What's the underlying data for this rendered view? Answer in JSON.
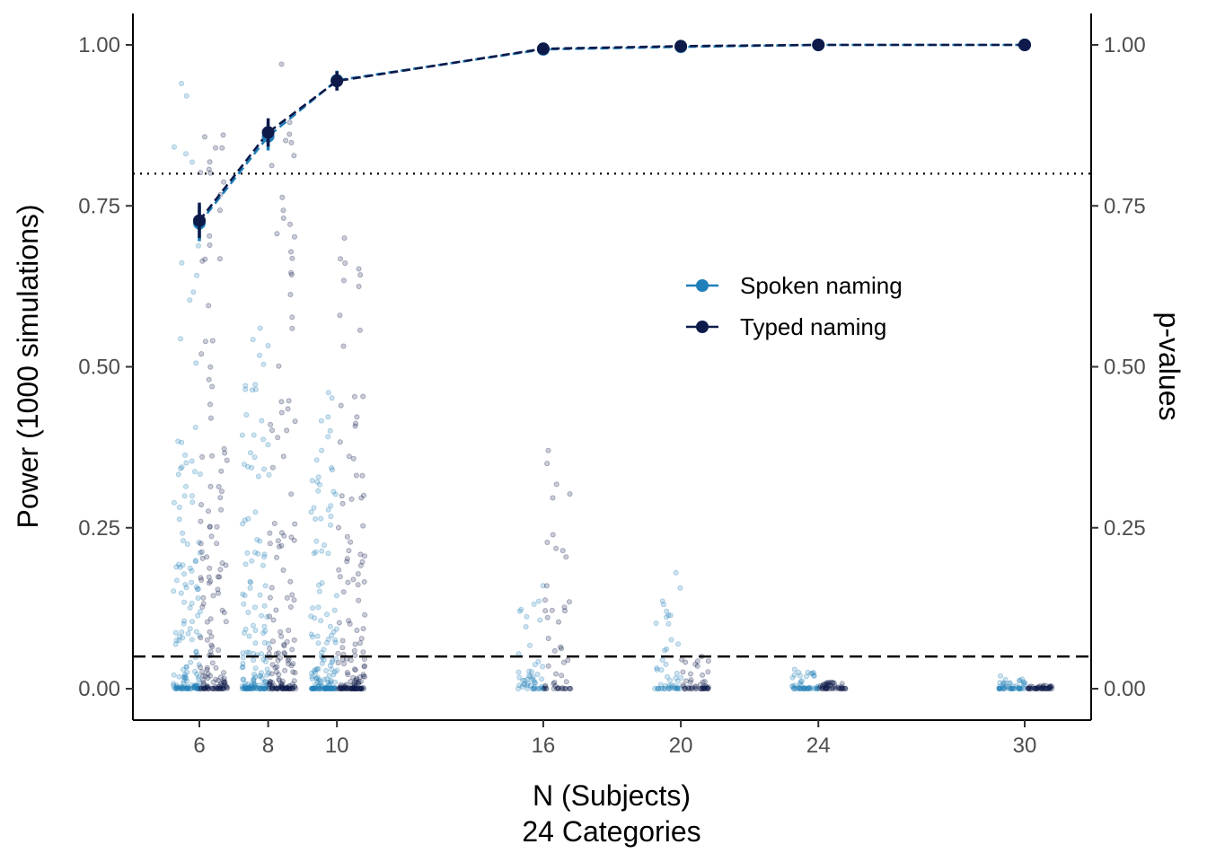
{
  "chart_data": {
    "type": "line",
    "x_axis": {
      "label_lines": [
        "N (Subjects)",
        "24 Categories"
      ],
      "ticks": [
        6,
        8,
        10,
        16,
        20,
        24,
        30
      ],
      "tick_labels": [
        "6",
        "8",
        "10",
        "16",
        "20",
        "24",
        "30"
      ]
    },
    "y_axis_left": {
      "label": "Power (1000 simulations)",
      "ticks": [
        0,
        0.25,
        0.5,
        0.75,
        1.0
      ],
      "tick_labels": [
        "0.00",
        "0.25",
        "0.50",
        "0.75",
        "1.00"
      ],
      "ylim": [
        -0.05,
        1.05
      ]
    },
    "y_axis_right": {
      "label": "p-values",
      "ticks": [
        0,
        0.25,
        0.5,
        0.75,
        1.0
      ],
      "tick_labels": [
        "0.00",
        "0.25",
        "0.50",
        "0.75",
        "1.00"
      ]
    },
    "reference_lines": [
      {
        "y": 0.8,
        "style": "dotted"
      },
      {
        "y": 0.05,
        "style": "dashed"
      }
    ],
    "legend": {
      "position": "center-right",
      "entries": [
        "Spoken naming",
        "Typed naming"
      ]
    },
    "series": [
      {
        "name": "Spoken naming",
        "color": "#1f7fb8",
        "x": [
          6,
          8,
          10,
          16,
          20,
          24,
          30
        ],
        "power": [
          0.723,
          0.858,
          0.945,
          0.993,
          0.997,
          1.0,
          1.0
        ],
        "ci": [
          [
            0.695,
            0.75
          ],
          [
            0.836,
            0.88
          ],
          [
            0.93,
            0.96
          ],
          [
            0.987,
            0.997
          ],
          [
            0.993,
            1.0
          ],
          [
            1.0,
            1.0
          ],
          [
            1.0,
            1.0
          ]
        ],
        "pvalue_max": [
          0.94,
          0.56,
          0.46,
          0.16,
          0.18,
          0.03,
          0.02
        ]
      },
      {
        "name": "Typed naming",
        "color": "#0d1a4a",
        "x": [
          6,
          8,
          10,
          16,
          20,
          24,
          30
        ],
        "power": [
          0.727,
          0.864,
          0.944,
          0.994,
          0.998,
          1.0,
          1.0
        ],
        "ci": [
          [
            0.7,
            0.755
          ],
          [
            0.842,
            0.886
          ],
          [
            0.929,
            0.959
          ],
          [
            0.988,
            0.998
          ],
          [
            0.994,
            1.0
          ],
          [
            1.0,
            1.0
          ],
          [
            1.0,
            1.0
          ]
        ],
        "pvalue_max": [
          0.86,
          0.97,
          0.7,
          0.37,
          0.05,
          0.01,
          0.005
        ]
      }
    ]
  }
}
